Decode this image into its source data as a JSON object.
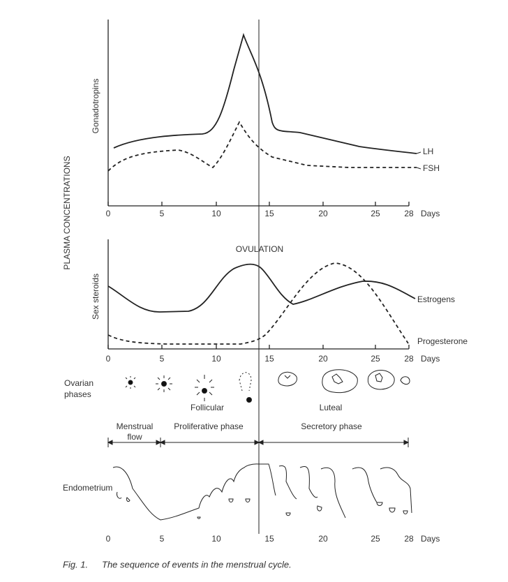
{
  "panels": {
    "gonadotropins": {
      "axis_label": "Gonadotropins",
      "series": [
        "LH",
        "FSH"
      ]
    },
    "steroids": {
      "axis_label": "Sex steroids",
      "series": [
        "Estrogens",
        "Progesterone"
      ],
      "event": "OVULATION"
    },
    "y_title": "PLASMA CONCENTRATIONS"
  },
  "day_ticks": [
    "0",
    "5",
    "10",
    "15",
    "20",
    "25",
    "28"
  ],
  "days_label": "Days",
  "ovarian": {
    "label": "Ovarian phases",
    "phases": [
      "Follicular",
      "Luteal"
    ]
  },
  "uterine": {
    "phases": [
      "Menstrual flow",
      "Proliferative phase",
      "Secretory phase"
    ],
    "label": "Endometrium"
  },
  "caption": {
    "number": "Fig. 1.",
    "text": "The sequence of events in the menstrual cycle."
  }
}
